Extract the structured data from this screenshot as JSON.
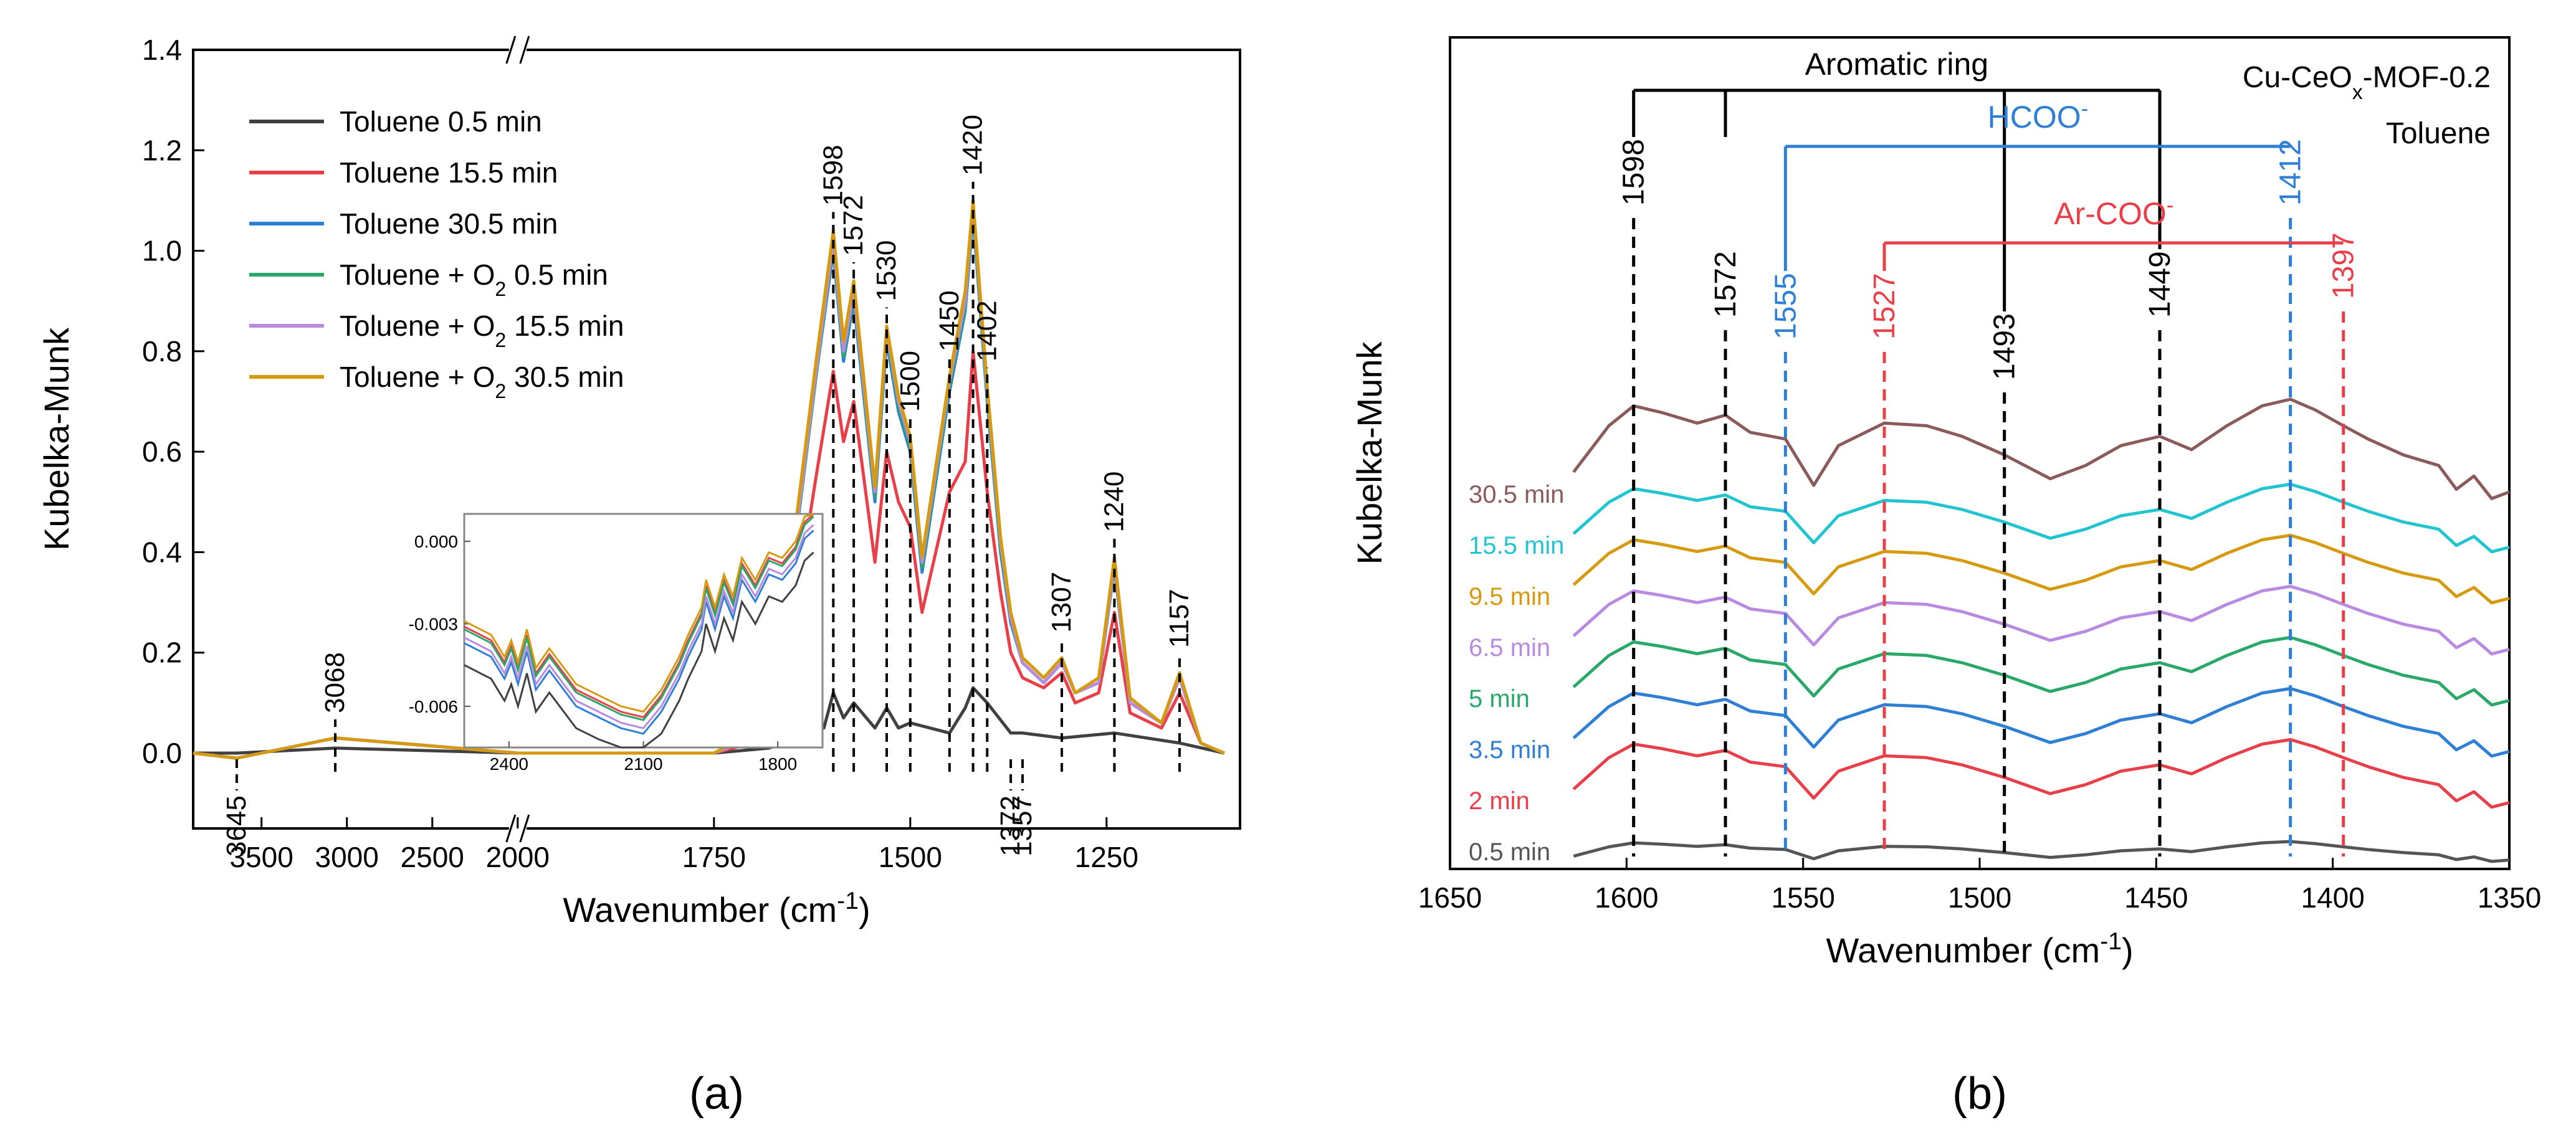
{
  "chart_data": [
    {
      "panel_label": "(a)",
      "type": "line",
      "xlabel": "Wavenumber (cm-1)",
      "ylabel": "Kubelka-Munk",
      "ylim": [
        -0.15,
        1.4
      ],
      "y_ticks": [
        "0.0",
        "0.2",
        "0.4",
        "0.6",
        "0.8",
        "1.0",
        "1.2",
        "1.4"
      ],
      "x_ticks": [
        "3500",
        "3000",
        "2500",
        "2000",
        "1750",
        "1500",
        "1250"
      ],
      "x_axis_break": true,
      "legend_position": "top-left",
      "legend": [
        {
          "label": "Toluene 0.5 min",
          "color": "#404040"
        },
        {
          "label": "Toluene 15.5 min",
          "color": "#e8404a"
        },
        {
          "label": "Toluene 30.5 min",
          "color": "#2f7fd4"
        },
        {
          "label": "Toluene + O2 0.5 min",
          "color": "#2aa86a"
        },
        {
          "label": "Toluene + O2 15.5 min",
          "color": "#b98be0"
        },
        {
          "label": "Toluene + O2 30.5 min",
          "color": "#d69a10"
        }
      ],
      "series": [
        {
          "name": "Toluene 0.5 min",
          "color": "#404040",
          "x": [
            3900,
            3645,
            3068,
            2000,
            1750,
            1680,
            1610,
            1598,
            1585,
            1572,
            1545,
            1530,
            1515,
            1500,
            1450,
            1430,
            1420,
            1402,
            1372,
            1357,
            1307,
            1240,
            1157,
            1100
          ],
          "y": [
            0,
            0,
            0.01,
            0,
            0,
            0.01,
            0.05,
            0.12,
            0.07,
            0.1,
            0.05,
            0.09,
            0.05,
            0.06,
            0.04,
            0.09,
            0.13,
            0.1,
            0.04,
            0.04,
            0.03,
            0.04,
            0.02,
            0
          ]
        },
        {
          "name": "Toluene 15.5 min",
          "color": "#e8404a",
          "x": [
            3900,
            3645,
            3068,
            2000,
            1750,
            1700,
            1660,
            1620,
            1598,
            1585,
            1572,
            1545,
            1530,
            1515,
            1500,
            1485,
            1450,
            1430,
            1420,
            1402,
            1385,
            1372,
            1357,
            1330,
            1307,
            1290,
            1260,
            1240,
            1220,
            1180,
            1157,
            1130,
            1100
          ],
          "y": [
            0,
            -0.01,
            0.03,
            0,
            0,
            0.02,
            0.15,
            0.55,
            0.76,
            0.62,
            0.7,
            0.38,
            0.6,
            0.5,
            0.45,
            0.28,
            0.52,
            0.58,
            0.8,
            0.52,
            0.32,
            0.2,
            0.15,
            0.13,
            0.16,
            0.1,
            0.12,
            0.28,
            0.08,
            0.05,
            0.12,
            0.02,
            0
          ]
        },
        {
          "name": "Toluene 30.5 min",
          "color": "#2f7fd4",
          "x": [
            3900,
            3645,
            3068,
            2000,
            1750,
            1700,
            1660,
            1620,
            1598,
            1585,
            1572,
            1545,
            1530,
            1515,
            1500,
            1485,
            1450,
            1430,
            1420,
            1402,
            1385,
            1372,
            1357,
            1330,
            1307,
            1290,
            1260,
            1240,
            1220,
            1180,
            1157,
            1130,
            1100
          ],
          "y": [
            0,
            -0.01,
            0.03,
            0,
            0,
            0.03,
            0.25,
            0.75,
            1.0,
            0.78,
            0.9,
            0.5,
            0.82,
            0.68,
            0.6,
            0.36,
            0.72,
            0.88,
            1.07,
            0.7,
            0.4,
            0.26,
            0.18,
            0.14,
            0.18,
            0.12,
            0.14,
            0.37,
            0.1,
            0.06,
            0.15,
            0.02,
            0
          ]
        },
        {
          "name": "Toluene + O2 0.5 min",
          "color": "#2aa86a",
          "x": [
            3900,
            3645,
            3068,
            2000,
            1750,
            1700,
            1660,
            1620,
            1598,
            1585,
            1572,
            1545,
            1530,
            1515,
            1500,
            1485,
            1450,
            1430,
            1420,
            1402,
            1385,
            1372,
            1357,
            1330,
            1307,
            1290,
            1260,
            1240,
            1220,
            1180,
            1157,
            1130,
            1100
          ],
          "y": [
            0,
            -0.01,
            0.03,
            0,
            0,
            0.03,
            0.25,
            0.75,
            1.01,
            0.79,
            0.91,
            0.51,
            0.83,
            0.69,
            0.61,
            0.37,
            0.73,
            0.89,
            1.08,
            0.71,
            0.41,
            0.27,
            0.18,
            0.14,
            0.18,
            0.12,
            0.14,
            0.38,
            0.1,
            0.06,
            0.15,
            0.02,
            0
          ]
        },
        {
          "name": "Toluene + O2 15.5 min",
          "color": "#b98be0",
          "x": [
            3900,
            3645,
            3068,
            2000,
            1750,
            1700,
            1660,
            1620,
            1598,
            1585,
            1572,
            1545,
            1530,
            1515,
            1500,
            1485,
            1450,
            1430,
            1420,
            1402,
            1385,
            1372,
            1357,
            1330,
            1307,
            1290,
            1260,
            1240,
            1220,
            1180,
            1157,
            1130,
            1100
          ],
          "y": [
            0,
            -0.01,
            0.03,
            0,
            0,
            0.03,
            0.26,
            0.76,
            1.02,
            0.8,
            0.92,
            0.52,
            0.84,
            0.7,
            0.62,
            0.38,
            0.74,
            0.9,
            1.09,
            0.72,
            0.42,
            0.27,
            0.18,
            0.14,
            0.18,
            0.12,
            0.14,
            0.38,
            0.1,
            0.06,
            0.15,
            0.02,
            0
          ]
        },
        {
          "name": "Toluene + O2 30.5 min",
          "color": "#d69a10",
          "x": [
            3900,
            3645,
            3068,
            2000,
            1750,
            1700,
            1660,
            1620,
            1598,
            1585,
            1572,
            1545,
            1530,
            1515,
            1500,
            1485,
            1450,
            1430,
            1420,
            1402,
            1385,
            1372,
            1357,
            1330,
            1307,
            1290,
            1260,
            1240,
            1220,
            1180,
            1157,
            1130,
            1100
          ],
          "y": [
            0,
            -0.01,
            0.03,
            0,
            0,
            0.04,
            0.28,
            0.78,
            1.04,
            0.82,
            0.94,
            0.53,
            0.85,
            0.71,
            0.63,
            0.39,
            0.75,
            0.92,
            1.1,
            0.73,
            0.43,
            0.28,
            0.19,
            0.15,
            0.19,
            0.12,
            0.15,
            0.39,
            0.11,
            0.06,
            0.16,
            0.02,
            0
          ]
        }
      ],
      "peak_labels": [
        {
          "text": "1598",
          "x": 1598,
          "y": 1.04,
          "side": "above"
        },
        {
          "text": "1572",
          "x": 1572,
          "y": 0.94,
          "side": "above"
        },
        {
          "text": "1530",
          "x": 1530,
          "y": 0.85,
          "side": "above"
        },
        {
          "text": "1500",
          "x": 1500,
          "y": 0.63,
          "side": "above"
        },
        {
          "text": "1450",
          "x": 1450,
          "y": 0.75,
          "side": "above"
        },
        {
          "text": "1420",
          "x": 1420,
          "y": 1.1,
          "side": "above"
        },
        {
          "text": "1402",
          "x": 1402,
          "y": 0.73,
          "side": "above"
        },
        {
          "text": "1307",
          "x": 1307,
          "y": 0.19,
          "side": "above"
        },
        {
          "text": "1240",
          "x": 1240,
          "y": 0.39,
          "side": "above"
        },
        {
          "text": "1157",
          "x": 1157,
          "y": 0.16,
          "side": "above"
        },
        {
          "text": "3068",
          "x": 3068,
          "y": 0.03,
          "side": "above"
        },
        {
          "text": "3645",
          "x": 3645,
          "y": -0.01,
          "side": "below"
        },
        {
          "text": "1372",
          "x": 1372,
          "y": 0.0,
          "side": "below"
        },
        {
          "text": "1357",
          "x": 1357,
          "y": 0.0,
          "side": "below"
        }
      ],
      "inset": {
        "xlim": [
          2500,
          1700
        ],
        "ylim": [
          -0.0075,
          0.001
        ],
        "x_ticks": [
          "2400",
          "2100",
          "1800"
        ],
        "y_ticks": [
          "0.000",
          "-0.003",
          "-0.006"
        ]
      }
    },
    {
      "panel_label": "(b)",
      "type": "line",
      "xlabel": "Wavenumber (cm-1)",
      "ylabel": "Kubelka-Munk",
      "xlim": [
        1650,
        1350
      ],
      "x_ticks": [
        "1650",
        "1600",
        "1550",
        "1500",
        "1450",
        "1400",
        "1350"
      ],
      "grid": false,
      "title": "Cu-CeOx-MOF-0.2",
      "subtitle": "Toluene",
      "series": [
        {
          "name": "0.5 min",
          "color": "#555555",
          "offset": 0
        },
        {
          "name": "2 min",
          "color": "#e8404a",
          "offset": 1
        },
        {
          "name": "3.5 min",
          "color": "#2f7fd4",
          "offset": 2
        },
        {
          "name": "5 min",
          "color": "#2aa86a",
          "offset": 3
        },
        {
          "name": "6.5 min",
          "color": "#b98be0",
          "offset": 4
        },
        {
          "name": "9.5 min",
          "color": "#d69a10",
          "offset": 5
        },
        {
          "name": "15.5 min",
          "color": "#22c4d0",
          "offset": 6
        },
        {
          "name": "30.5 min",
          "color": "#8b5a5a",
          "offset": 7
        }
      ],
      "spectrum_shape": {
        "x": [
          1615,
          1605,
          1598,
          1590,
          1580,
          1572,
          1565,
          1555,
          1547,
          1540,
          1527,
          1515,
          1505,
          1493,
          1480,
          1470,
          1460,
          1449,
          1440,
          1430,
          1420,
          1412,
          1405,
          1397,
          1390,
          1380,
          1370,
          1365,
          1360,
          1355,
          1350
        ],
        "y": [
          0.25,
          0.6,
          0.75,
          0.7,
          0.62,
          0.68,
          0.55,
          0.5,
          0.15,
          0.45,
          0.62,
          0.6,
          0.52,
          0.38,
          0.2,
          0.3,
          0.45,
          0.52,
          0.42,
          0.6,
          0.75,
          0.8,
          0.72,
          0.6,
          0.5,
          0.38,
          0.3,
          0.12,
          0.22,
          0.05,
          0.1
        ]
      },
      "band_labels": [
        {
          "text": "1598",
          "x": 1598,
          "color": "#000000"
        },
        {
          "text": "1572",
          "x": 1572,
          "color": "#000000"
        },
        {
          "text": "1555",
          "x": 1555,
          "color": "#2f7fd4"
        },
        {
          "text": "1527",
          "x": 1527,
          "color": "#e8404a"
        },
        {
          "text": "1493",
          "x": 1493,
          "color": "#000000"
        },
        {
          "text": "1449",
          "x": 1449,
          "color": "#000000"
        },
        {
          "text": "1412",
          "x": 1412,
          "color": "#2f7fd4"
        },
        {
          "text": "1397",
          "x": 1397,
          "color": "#e8404a"
        }
      ],
      "groups": [
        {
          "label": "Aromatic ring",
          "color": "#000000",
          "members": [
            1598,
            1572,
            1493,
            1449
          ]
        },
        {
          "label": "HCOO-",
          "color": "#2f7fd4",
          "members": [
            1555,
            1412
          ]
        },
        {
          "label": "Ar-COO-",
          "color": "#e8404a",
          "members": [
            1527,
            1397
          ]
        }
      ]
    }
  ]
}
